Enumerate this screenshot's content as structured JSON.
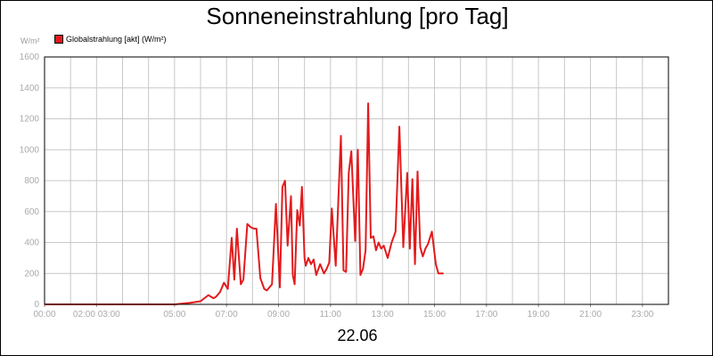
{
  "chart_data": {
    "type": "line",
    "title": "Sonneneinstrahlung [pro Tag]",
    "ylabel": "W/m²",
    "xlabel": "22.06",
    "ylim": [
      0,
      1600
    ],
    "xlim": [
      0,
      24
    ],
    "y_ticks": [
      "0",
      "200",
      "400",
      "600",
      "800",
      "1000",
      "1200",
      "1400",
      "1600"
    ],
    "x_tick_labels": [
      {
        "hour": 0,
        "label": "00:00"
      },
      {
        "hour": 2,
        "label": "02:00 03:00"
      },
      {
        "hour": 5,
        "label": "05:00"
      },
      {
        "hour": 7,
        "label": "07:00"
      },
      {
        "hour": 9,
        "label": "09:00"
      },
      {
        "hour": 11,
        "label": "11:00"
      },
      {
        "hour": 13,
        "label": "13:00"
      },
      {
        "hour": 15,
        "label": "15:00"
      },
      {
        "hour": 17,
        "label": "17:00"
      },
      {
        "hour": 19,
        "label": "19:00"
      },
      {
        "hour": 21,
        "label": "21:00"
      },
      {
        "hour": 23,
        "label": "23:00"
      }
    ],
    "grid": true,
    "legend_position": "top-left",
    "series": [
      {
        "name": "Globalstrahlung [akt] (W/m²)",
        "color": "#e31a1c",
        "x": [
          0,
          5.0,
          5.6,
          6.0,
          6.3,
          6.5,
          6.6,
          6.75,
          6.9,
          7.05,
          7.2,
          7.3,
          7.4,
          7.55,
          7.65,
          7.8,
          7.92,
          8.05,
          8.15,
          8.3,
          8.45,
          8.55,
          8.75,
          8.9,
          9.05,
          9.15,
          9.25,
          9.35,
          9.48,
          9.55,
          9.62,
          9.72,
          9.82,
          9.9,
          10.0,
          10.05,
          10.15,
          10.25,
          10.35,
          10.45,
          10.6,
          10.75,
          10.85,
          10.95,
          11.05,
          11.2,
          11.4,
          11.5,
          11.6,
          11.7,
          11.8,
          11.95,
          12.05,
          12.15,
          12.25,
          12.35,
          12.45,
          12.55,
          12.65,
          12.75,
          12.85,
          12.95,
          13.05,
          13.2,
          13.35,
          13.5,
          13.65,
          13.8,
          13.95,
          14.05,
          14.15,
          14.25,
          14.35,
          14.45,
          14.55,
          14.65,
          14.75,
          14.9,
          15.05,
          15.15,
          15.25,
          15.35
        ],
        "y": [
          0,
          0,
          10,
          20,
          60,
          40,
          50,
          80,
          140,
          100,
          430,
          160,
          490,
          130,
          160,
          520,
          500,
          490,
          490,
          170,
          100,
          90,
          130,
          650,
          110,
          760,
          800,
          380,
          700,
          190,
          130,
          610,
          510,
          760,
          300,
          250,
          300,
          260,
          290,
          190,
          260,
          200,
          230,
          270,
          620,
          250,
          1090,
          220,
          210,
          850,
          990,
          410,
          1000,
          190,
          230,
          350,
          1300,
          430,
          440,
          350,
          400,
          360,
          380,
          300,
          400,
          470,
          1150,
          370,
          850,
          360,
          810,
          260,
          860,
          370,
          310,
          360,
          390,
          470,
          260,
          200,
          200,
          200
        ]
      }
    ]
  },
  "page": {
    "title": "Sonneneinstrahlung [pro Tag]",
    "unit": "W/m²",
    "legend_label": "Globalstrahlung [akt] (W/m²)",
    "date": "22.06"
  }
}
